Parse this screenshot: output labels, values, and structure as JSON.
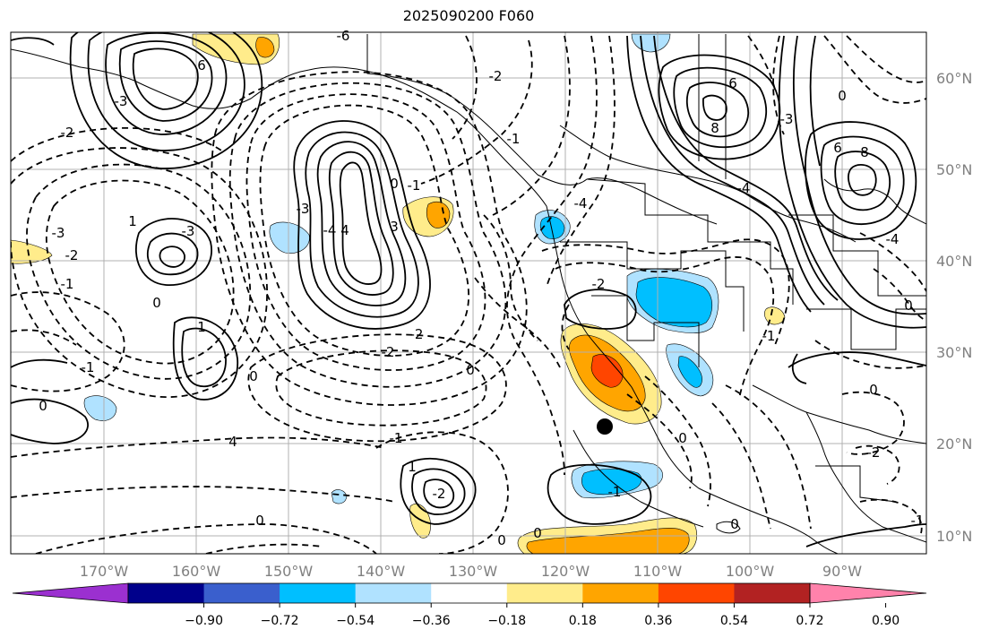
{
  "title": "2025090200 F060",
  "map": {
    "lon_labels": [
      "170°W",
      "160°W",
      "150°W",
      "140°W",
      "130°W",
      "120°W",
      "110°W",
      "100°W",
      "90°W"
    ],
    "lat_labels": [
      "60°N",
      "50°N",
      "40°N",
      "30°N",
      "20°N",
      "10°N"
    ],
    "axis_label_color": "#808080",
    "contour_labels": [
      "-6",
      "6",
      "-3",
      "-2",
      "-3",
      "-2",
      "-1",
      "0",
      "1",
      "1",
      "-1",
      "0",
      "0",
      "-4",
      "4",
      "-3",
      "3",
      "-1",
      "0",
      "-2",
      "-2",
      "-1",
      "0",
      "0",
      "-2",
      "-1",
      "0",
      "-3",
      "0",
      "-4",
      "4",
      "6",
      "8",
      "-3",
      "-4",
      "6",
      "8",
      "0",
      "-4",
      "-1",
      "0",
      "0",
      "-2",
      "-1",
      "0",
      "-2",
      "1",
      "-2",
      "-1",
      "0"
    ],
    "marker": {
      "name": "location-dot",
      "color": "#000000"
    }
  },
  "colorbar": {
    "ticks": [
      "−0.90",
      "−0.72",
      "−0.54",
      "−0.36",
      "−0.18",
      "0.18",
      "0.36",
      "0.54",
      "0.72",
      "0.90"
    ],
    "colors": [
      "#9b30d0",
      "#00008b",
      "#3a5fcd",
      "#00bfff",
      "#b0e2ff",
      "#ffffff",
      "#ffec8b",
      "#ffa500",
      "#ff4500",
      "#b22222",
      "#ff82ab"
    ]
  }
}
